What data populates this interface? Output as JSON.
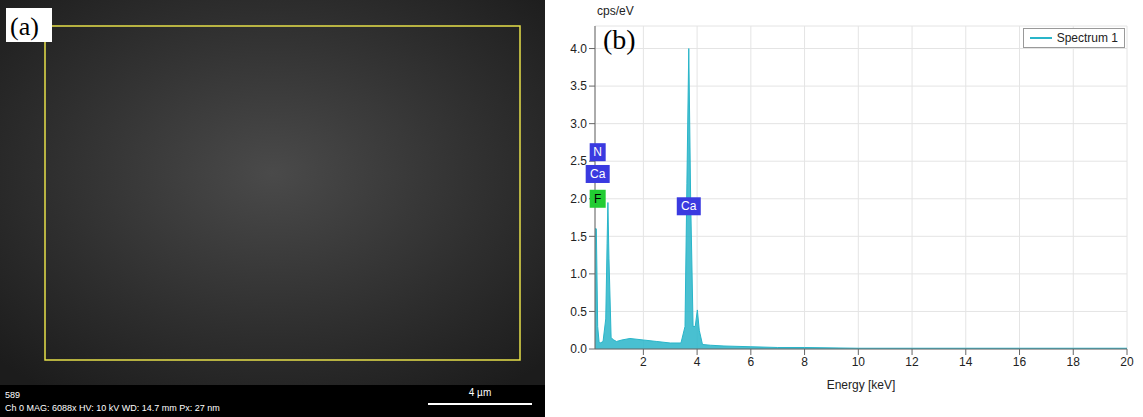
{
  "micrograph": {
    "panel_label": "(a)",
    "frame_number": "589",
    "info": "Ch 0 MAG: 6088x HV: 10 kV WD: 14.7 mm Px: 27 nm",
    "scale_bar": "4 µm"
  },
  "chart_data": {
    "type": "area",
    "panel_label": "(b)",
    "y_label": "cps/eV",
    "x_label": "Energy [keV]",
    "x": [
      0.2,
      0.25,
      0.3,
      0.35,
      0.4,
      0.5,
      0.6,
      0.65,
      0.68,
      0.72,
      0.8,
      0.9,
      1.0,
      1.2,
      1.5,
      2.0,
      2.5,
      3.0,
      3.4,
      3.55,
      3.62,
      3.69,
      3.76,
      3.85,
      3.93,
      4.01,
      4.08,
      4.2,
      4.5,
      5,
      6,
      7,
      8,
      10,
      12,
      14,
      16,
      18,
      20
    ],
    "series": [
      {
        "name": "Spectrum 1",
        "color": "#29b5c9",
        "values": [
          1.6,
          1.6,
          0.3,
          0.1,
          0.08,
          0.1,
          0.4,
          1.4,
          1.95,
          1.2,
          0.15,
          0.12,
          0.1,
          0.12,
          0.14,
          0.12,
          0.1,
          0.08,
          0.08,
          0.3,
          2.2,
          4.0,
          2.0,
          0.3,
          0.3,
          0.52,
          0.25,
          0.06,
          0.05,
          0.04,
          0.03,
          0.02,
          0.02,
          0.01,
          0.01,
          0.01,
          0.01,
          0.01,
          0.01
        ]
      }
    ],
    "xlim": [
      0.2,
      20
    ],
    "xticks": [
      2,
      4,
      6,
      8,
      10,
      12,
      14,
      16,
      18,
      20
    ],
    "ylim": [
      0,
      4.3
    ],
    "yticks": [
      {
        "value": 0,
        "label": "0.0"
      },
      {
        "value": 0.5,
        "label": "0.5"
      },
      {
        "value": 1,
        "label": "1.0"
      },
      {
        "value": 1.5,
        "label": "1.5"
      },
      {
        "value": 2,
        "label": "2.0"
      },
      {
        "value": 2.5,
        "label": "2.5"
      },
      {
        "value": 3,
        "label": "3.0"
      },
      {
        "value": 3.5,
        "label": "3.5"
      },
      {
        "value": 4,
        "label": "4.0"
      }
    ],
    "grid": true,
    "legend": "upper right",
    "annotations": [
      {
        "text": "N",
        "x": 0.3,
        "y": 2.62,
        "color": "#3a3ae0"
      },
      {
        "text": "Ca",
        "x": 0.3,
        "y": 2.33,
        "color": "#3a3ae0"
      },
      {
        "text": "F",
        "x": 0.3,
        "y": 2.0,
        "color": "#22cc33"
      },
      {
        "text": "Ca",
        "x": 3.69,
        "y": 1.9,
        "color": "#3a3ae0"
      }
    ]
  }
}
